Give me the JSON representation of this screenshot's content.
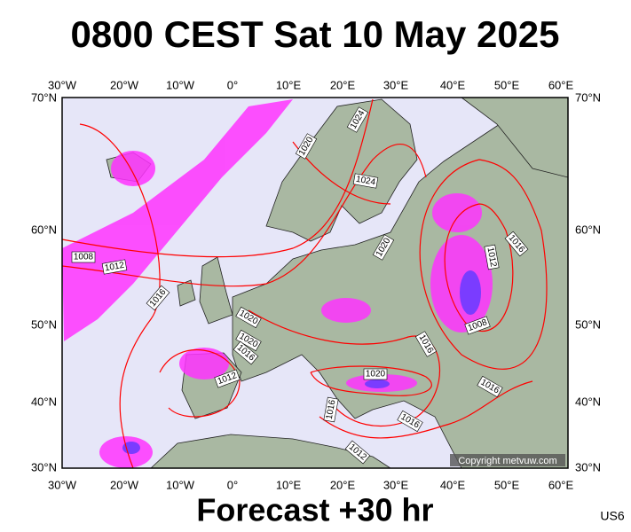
{
  "title": "0800 CEST Sat 10 May 2025",
  "longitude_labels": [
    "30°W",
    "20°W",
    "10°W",
    "0°",
    "10°E",
    "20°E",
    "30°E",
    "40°E",
    "50°E",
    "60°E"
  ],
  "latitude_labels": [
    "70°N",
    "60°N",
    "50°N",
    "40°N",
    "30°N"
  ],
  "isobar_labels": [
    "1024",
    "1020",
    "1024",
    "1020",
    "1008",
    "1012",
    "1016",
    "1016",
    "1012",
    "1008",
    "1020",
    "1020",
    "1016",
    "1012",
    "1016",
    "1020",
    "1016",
    "1016",
    "1016",
    "1012"
  ],
  "copyright": "Copyright metvuw.com",
  "footer": "Forecast +30 hr",
  "code": "US6"
}
